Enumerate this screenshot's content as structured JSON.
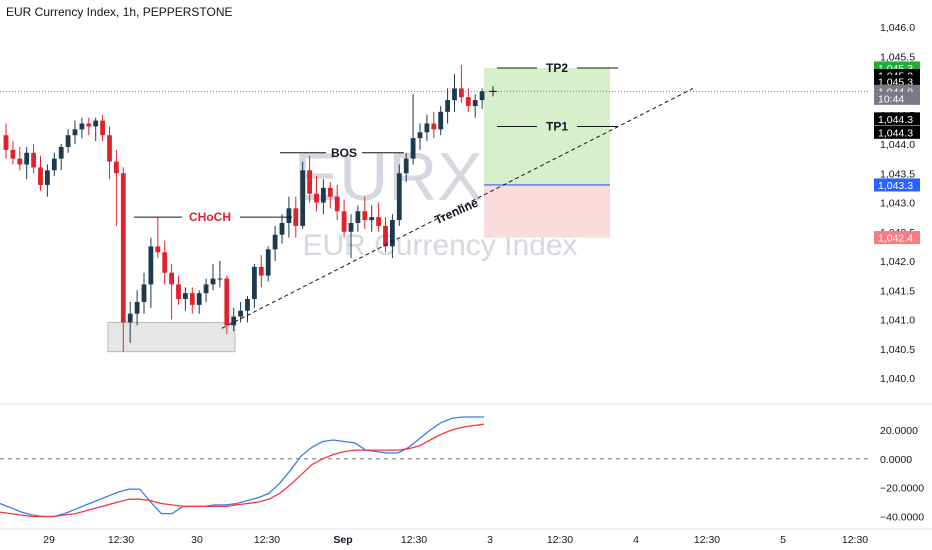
{
  "header": {
    "title": "EUR Currency Index, 1h, PEPPERSTONE"
  },
  "watermark": {
    "symbol": "EURX, 1h",
    "name": "EUR Currency Index"
  },
  "colors": {
    "up": "#1e3a4f",
    "down": "#e0222d",
    "macd": "#3b7de8",
    "signal": "#f23645",
    "target_zone": "#d6f0cc",
    "stop_zone": "#fadcdc",
    "entry": "#2962ff"
  },
  "chart_data": [
    {
      "type": "candlestick",
      "title": "EUR Currency Index, 1h, PEPPERSTONE",
      "ylim": [
        1039.8,
        1046.2
      ],
      "y_ticks": [
        "1,046.0",
        "1,045.5",
        "1,045.0",
        "1,044.5",
        "1,044.0",
        "1,043.5",
        "1,043.0",
        "1,042.5",
        "1,042.0",
        "1,041.5",
        "1,041.0",
        "1,040.5",
        "1,040.0"
      ],
      "x_ticks": [
        "29",
        "12:30",
        "30",
        "12:30",
        "Sep",
        "12:30",
        "3",
        "12:30",
        "4",
        "12:30",
        "5",
        "12:30"
      ],
      "candles": [
        [
          1044.15,
          1044.35,
          1043.75,
          1043.9
        ],
        [
          1043.9,
          1044.05,
          1043.65,
          1043.75
        ],
        [
          1043.75,
          1043.95,
          1043.55,
          1043.65
        ],
        [
          1043.65,
          1043.95,
          1043.4,
          1043.85
        ],
        [
          1043.85,
          1044.0,
          1043.5,
          1043.6
        ],
        [
          1043.6,
          1043.8,
          1043.2,
          1043.3
        ],
        [
          1043.3,
          1043.65,
          1043.1,
          1043.55
        ],
        [
          1043.55,
          1043.85,
          1043.45,
          1043.75
        ],
        [
          1043.75,
          1044.0,
          1043.55,
          1043.95
        ],
        [
          1043.95,
          1044.25,
          1043.85,
          1044.15
        ],
        [
          1044.15,
          1044.4,
          1044.0,
          1044.25
        ],
        [
          1044.25,
          1044.45,
          1044.1,
          1044.35
        ],
        [
          1044.35,
          1044.45,
          1044.15,
          1044.3
        ],
        [
          1044.3,
          1044.45,
          1044.05,
          1044.4
        ],
        [
          1044.4,
          1044.5,
          1044.05,
          1044.15
        ],
        [
          1044.15,
          1044.3,
          1043.4,
          1043.7
        ],
        [
          1043.7,
          1043.9,
          1042.6,
          1043.5
        ],
        [
          1043.5,
          1043.6,
          1040.45,
          1040.95
        ],
        [
          1040.95,
          1041.3,
          1040.6,
          1041.1
        ],
        [
          1041.1,
          1041.5,
          1040.9,
          1041.3
        ],
        [
          1041.3,
          1041.8,
          1041.1,
          1041.6
        ],
        [
          1041.6,
          1042.4,
          1041.2,
          1042.25
        ],
        [
          1042.25,
          1042.75,
          1042.05,
          1042.15
        ],
        [
          1042.15,
          1042.35,
          1041.6,
          1041.8
        ],
        [
          1041.8,
          1041.95,
          1041.0,
          1041.6
        ],
        [
          1041.6,
          1041.75,
          1041.25,
          1041.35
        ],
        [
          1041.35,
          1041.55,
          1041.15,
          1041.45
        ],
        [
          1041.45,
          1041.55,
          1041.1,
          1041.25
        ],
        [
          1041.25,
          1041.5,
          1041.1,
          1041.45
        ],
        [
          1041.45,
          1041.7,
          1041.3,
          1041.6
        ],
        [
          1041.6,
          1041.95,
          1041.5,
          1041.7
        ],
        [
          1041.7,
          1042.0,
          1041.55,
          1041.7
        ],
        [
          1041.7,
          1041.75,
          1040.75,
          1040.9
        ],
        [
          1040.9,
          1041.2,
          1040.8,
          1041.05
        ],
        [
          1041.05,
          1041.3,
          1040.95,
          1041.15
        ],
        [
          1041.15,
          1041.4,
          1040.95,
          1041.35
        ],
        [
          1041.35,
          1041.95,
          1041.2,
          1041.9
        ],
        [
          1041.9,
          1042.1,
          1041.55,
          1041.75
        ],
        [
          1041.75,
          1042.25,
          1041.65,
          1042.2
        ],
        [
          1042.2,
          1042.6,
          1042.0,
          1042.45
        ],
        [
          1042.45,
          1042.8,
          1042.3,
          1042.65
        ],
        [
          1042.65,
          1043.1,
          1042.4,
          1042.9
        ],
        [
          1042.9,
          1043.1,
          1042.4,
          1042.6
        ],
        [
          1042.6,
          1043.7,
          1042.55,
          1043.55
        ],
        [
          1043.55,
          1043.8,
          1043.0,
          1043.15
        ],
        [
          1043.15,
          1043.45,
          1042.85,
          1043.0
        ],
        [
          1043.0,
          1043.4,
          1042.8,
          1043.25
        ],
        [
          1043.25,
          1043.35,
          1042.9,
          1043.1
        ],
        [
          1043.1,
          1043.3,
          1042.7,
          1042.85
        ],
        [
          1042.85,
          1043.05,
          1042.4,
          1042.5
        ],
        [
          1042.5,
          1042.8,
          1042.05,
          1042.65
        ],
        [
          1042.65,
          1042.95,
          1042.5,
          1042.85
        ],
        [
          1042.85,
          1043.1,
          1042.55,
          1042.7
        ],
        [
          1042.7,
          1042.95,
          1042.5,
          1042.75
        ],
        [
          1042.75,
          1043.0,
          1042.5,
          1042.6
        ],
        [
          1042.6,
          1042.75,
          1042.15,
          1042.25
        ],
        [
          1042.25,
          1042.8,
          1042.05,
          1042.7
        ],
        [
          1042.7,
          1043.65,
          1042.6,
          1043.5
        ],
        [
          1043.5,
          1043.85,
          1043.35,
          1043.75
        ],
        [
          1043.75,
          1044.85,
          1043.65,
          1044.1
        ],
        [
          1044.1,
          1044.35,
          1043.9,
          1044.2
        ],
        [
          1044.2,
          1044.5,
          1044.05,
          1044.35
        ],
        [
          1044.35,
          1044.55,
          1044.1,
          1044.25
        ],
        [
          1044.25,
          1044.65,
          1044.15,
          1044.55
        ],
        [
          1044.55,
          1044.95,
          1044.35,
          1044.75
        ],
        [
          1044.75,
          1045.2,
          1044.55,
          1044.95
        ],
        [
          1044.95,
          1045.35,
          1044.7,
          1044.8
        ],
        [
          1044.8,
          1044.95,
          1044.55,
          1044.65
        ],
        [
          1044.65,
          1044.85,
          1044.45,
          1044.75
        ],
        [
          1044.75,
          1044.95,
          1044.6,
          1044.9
        ]
      ],
      "price_tags": [
        {
          "label": "1,045.3",
          "value": 1045.3,
          "bg": "#22ab3a"
        },
        {
          "label": "1,045.3",
          "value": 1045.17,
          "bg": "#000000"
        },
        {
          "label": "1,045.3",
          "value": 1045.07,
          "bg": "#000000"
        },
        {
          "label": "1,044.9",
          "value": 1044.9,
          "bg": "#787b86"
        },
        {
          "label": "10:44",
          "value": 1044.78,
          "bg": "#787b86"
        },
        {
          "label": "1,044.3",
          "value": 1044.43,
          "bg": "#000000"
        },
        {
          "label": "1,044.3",
          "value": 1044.2,
          "bg": "#000000"
        },
        {
          "label": "1,043.3",
          "value": 1043.3,
          "bg": "#2962ff"
        },
        {
          "label": "1,042.4",
          "value": 1042.4,
          "bg": "#f77c80"
        }
      ],
      "annotations": [
        {
          "label": "CHoCH",
          "color": "#e0222d"
        },
        {
          "label": "BOS",
          "color": "#131722"
        },
        {
          "label": "TP2",
          "color": "#131722"
        },
        {
          "label": "TP1",
          "color": "#131722"
        },
        {
          "label": "Trenline",
          "color": "#131722"
        }
      ],
      "trade": {
        "entry": 1043.3,
        "stop": 1042.4,
        "tp1": 1044.3,
        "tp2": 1045.3
      },
      "demand_zone": {
        "top": 1040.95,
        "bottom": 1040.45
      },
      "last_price": 1044.9
    },
    {
      "type": "line",
      "series_kind": "oscillator",
      "ylim": [
        -48,
        38
      ],
      "y_ticks": [
        "20.0000",
        "0.0000",
        "−20.0000",
        "−40.0000"
      ],
      "zero_line": 0,
      "series": [
        {
          "color": "#3b7de8",
          "values": [
            -31,
            -34,
            -37,
            -39,
            -40,
            -40,
            -38,
            -35,
            -32,
            -29,
            -26,
            -23,
            -21,
            -21,
            -30,
            -38,
            -38,
            -33,
            -33,
            -33,
            -32,
            -32,
            -31,
            -29,
            -27,
            -24,
            -17,
            -8,
            2,
            8,
            12,
            13,
            12,
            11,
            6,
            5,
            4,
            4,
            8,
            14,
            20,
            25,
            28,
            29,
            29,
            29
          ]
        },
        {
          "color": "#f23645",
          "values": [
            -37,
            -38,
            -39,
            -40,
            -40,
            -40,
            -39,
            -38,
            -36,
            -34,
            -32,
            -30,
            -28,
            -28,
            -29,
            -31,
            -32,
            -33,
            -33,
            -33,
            -33,
            -33,
            -32,
            -31,
            -30,
            -28,
            -24,
            -18,
            -11,
            -4,
            0,
            3,
            5,
            6,
            6,
            6,
            6,
            6,
            7,
            9,
            13,
            17,
            20,
            22,
            23,
            24
          ]
        }
      ]
    }
  ]
}
